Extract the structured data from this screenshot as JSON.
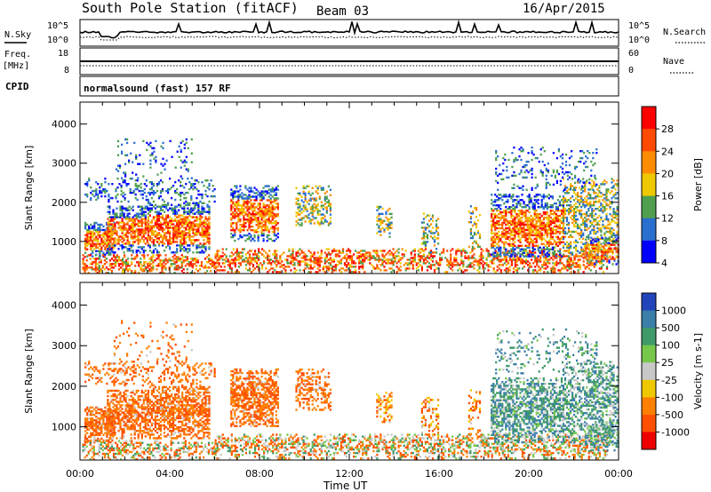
{
  "header": {
    "station": "South Pole Station (fitACF)",
    "beam": "Beam 03",
    "date": "16/Apr/2015"
  },
  "strip_sky": {
    "left_label": "N.Sky",
    "right_label": "N.Search",
    "y_ticks": [
      "10^5",
      "10^0"
    ]
  },
  "strip_freq": {
    "left_label_1": "Freq.",
    "left_label_2": "[MHz]",
    "left_ticks": [
      "18",
      "8"
    ],
    "right_label": "Nave",
    "right_ticks": [
      "60",
      "0"
    ]
  },
  "strip_cpid": {
    "label": "CPID",
    "text": "normalsound (fast) 157 RF"
  },
  "chart_data": [
    {
      "type": "heatmap",
      "ylabel": "Slant Range [km]",
      "ylim": [
        180,
        4560
      ],
      "y_ticks": [
        1000,
        2000,
        3000,
        4000
      ],
      "x_ticks": [
        "00:00",
        "04:00",
        "08:00",
        "12:00",
        "16:00",
        "20:00",
        "00:00"
      ],
      "colorbar": {
        "label": "Power [dB]",
        "ticks": [
          "28",
          "24",
          "20",
          "16",
          "12",
          "8",
          "4"
        ],
        "colors": [
          "#ff0000",
          "#ff4a00",
          "#ff8c00",
          "#f0c800",
          "#4f9f4f",
          "#2a6fcf",
          "#0000ff"
        ]
      }
    },
    {
      "type": "heatmap",
      "ylabel": "Slant Range [km]",
      "ylim": [
        180,
        4560
      ],
      "y_ticks": [
        1000,
        2000,
        3000,
        4000
      ],
      "x_ticks": [
        "00:00",
        "04:00",
        "08:00",
        "12:00",
        "16:00",
        "20:00",
        "00:00"
      ],
      "xlabel": "Time UT",
      "colorbar": {
        "label": "Velocity [m s-1]",
        "ticks": [
          "1000",
          "500",
          "100",
          "25",
          "-25",
          "-100",
          "-500",
          "-1000"
        ],
        "colors": [
          "#2244bb",
          "#3b7fa8",
          "#3f9a6a",
          "#77c84a",
          "#c8c8c8",
          "#f0c800",
          "#ff8000",
          "#ff5000",
          "#ee0000"
        ]
      }
    }
  ]
}
